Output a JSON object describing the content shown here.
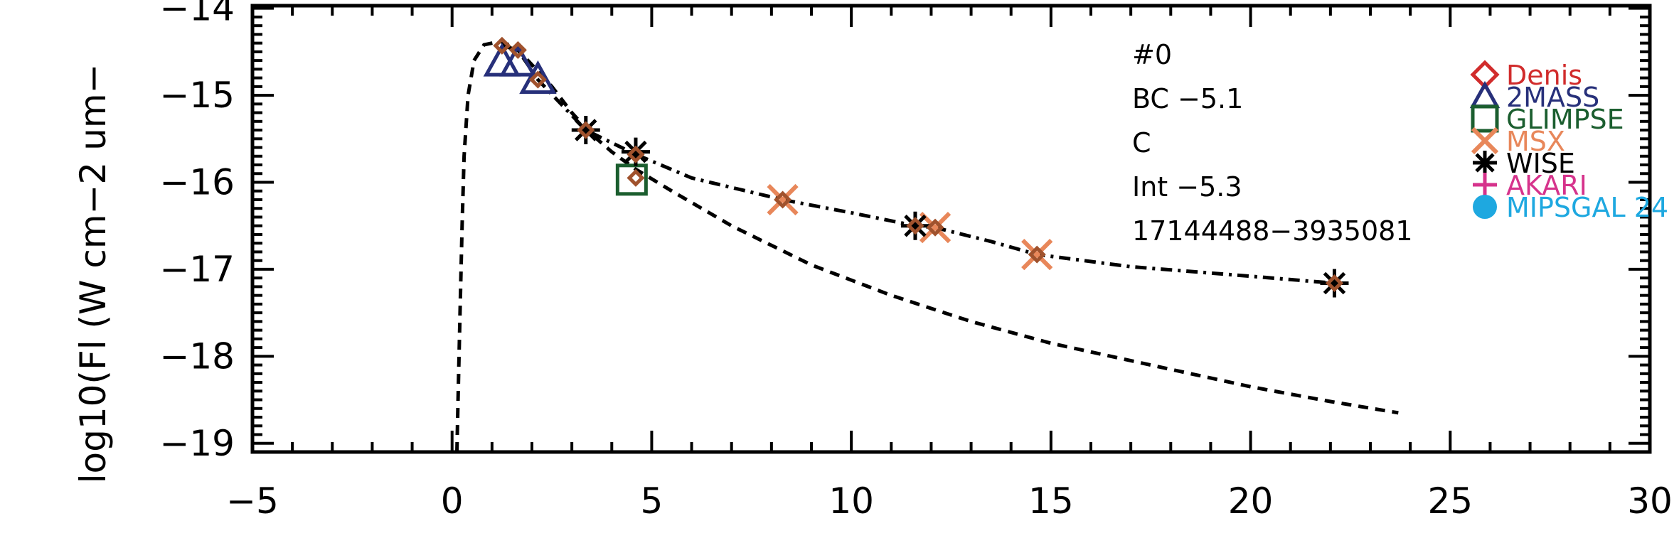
{
  "chart_data": {
    "type": "scatter",
    "xlim": [
      -5,
      30
    ],
    "ylim": [
      -19.1,
      -13.97
    ],
    "x_ticks": [
      -5,
      0,
      5,
      10,
      15,
      20,
      25,
      30
    ],
    "x_tick_labels": [
      "−5",
      "0",
      "5",
      "10",
      "15",
      "20",
      "25",
      "30"
    ],
    "y_ticks": [
      -19,
      -18,
      -17,
      -16,
      -15,
      -14
    ],
    "y_tick_labels": [
      "−19",
      "−18",
      "−17",
      "−16",
      "−15",
      "−14"
    ],
    "ylabel": "log10(Fl (W cm−2 um−",
    "xlabel": "",
    "grid": false,
    "annotations": [
      "#0",
      "BC −5.1",
      "C",
      "Int −5.3",
      "17144488−3935081"
    ],
    "legend_placement": "right",
    "legend": [
      {
        "name": "Denis",
        "marker": "diamond",
        "color": "#d12c2c"
      },
      {
        "name": "2MASS",
        "marker": "triangle",
        "color": "#27307a"
      },
      {
        "name": "GLIMPSE",
        "marker": "square",
        "color": "#1b5e2f"
      },
      {
        "name": "MSX",
        "marker": "x",
        "color": "#e8875a"
      },
      {
        "name": "WISE",
        "marker": "asterisk",
        "color": "#000000"
      },
      {
        "name": "AKARI",
        "marker": "plus",
        "color": "#d6338c"
      },
      {
        "name": "MIPSGAL 24",
        "marker": "circle",
        "color": "#1ea8e0"
      }
    ],
    "lines": [
      {
        "style": "dashed",
        "points": [
          [
            0.12,
            -19.1
          ],
          [
            0.15,
            -18.5
          ],
          [
            0.2,
            -17.5
          ],
          [
            0.25,
            -16.5
          ],
          [
            0.3,
            -15.7
          ],
          [
            0.4,
            -15.0
          ],
          [
            0.55,
            -14.6
          ],
          [
            0.8,
            -14.42
          ],
          [
            1.2,
            -14.38
          ],
          [
            1.6,
            -14.45
          ],
          [
            2.0,
            -14.65
          ],
          [
            2.5,
            -14.9
          ],
          [
            3.0,
            -15.2
          ],
          [
            3.5,
            -15.45
          ],
          [
            4.0,
            -15.65
          ],
          [
            4.6,
            -15.85
          ],
          [
            5.5,
            -16.1
          ],
          [
            7.0,
            -16.5
          ],
          [
            9.0,
            -16.95
          ],
          [
            11.0,
            -17.3
          ],
          [
            13.0,
            -17.6
          ],
          [
            15.0,
            -17.85
          ],
          [
            17.5,
            -18.1
          ],
          [
            20.0,
            -18.35
          ],
          [
            22.0,
            -18.52
          ],
          [
            23.7,
            -18.65
          ]
        ]
      },
      {
        "style": "dashdot",
        "points": [
          [
            1.25,
            -14.43
          ],
          [
            1.65,
            -14.48
          ],
          [
            2.15,
            -14.82
          ],
          [
            3.35,
            -15.4
          ],
          [
            4.6,
            -15.68
          ],
          [
            6.0,
            -15.95
          ],
          [
            8.28,
            -16.2
          ],
          [
            10.0,
            -16.35
          ],
          [
            11.6,
            -16.5
          ],
          [
            12.1,
            -16.52
          ],
          [
            13.5,
            -16.68
          ],
          [
            14.65,
            -16.83
          ],
          [
            17.0,
            -16.97
          ],
          [
            20.0,
            -17.08
          ],
          [
            22.1,
            -17.16
          ]
        ]
      }
    ],
    "series": [
      {
        "name": "Denis",
        "marker": "diamond",
        "x": [
          1.25,
          1.65,
          2.15,
          3.35,
          4.6,
          4.6,
          8.28,
          11.6,
          12.1,
          14.65,
          22.1
        ],
        "y": [
          -14.43,
          -14.48,
          -14.82,
          -15.4,
          -15.68,
          -15.95,
          -16.2,
          -16.5,
          -16.52,
          -16.83,
          -17.16
        ]
      },
      {
        "name": "2MASS",
        "marker": "triangle",
        "x": [
          1.25,
          1.65,
          2.15
        ],
        "y": [
          -14.62,
          -14.62,
          -14.82
        ]
      },
      {
        "name": "GLIMPSE",
        "marker": "square",
        "x": [
          4.5
        ],
        "y": [
          -15.97
        ]
      },
      {
        "name": "MSX",
        "marker": "x",
        "x": [
          8.28,
          12.1,
          14.65
        ],
        "y": [
          -16.2,
          -16.52,
          -16.83
        ]
      },
      {
        "name": "WISE",
        "marker": "asterisk",
        "x": [
          3.35,
          4.6,
          11.6,
          22.1
        ],
        "y": [
          -15.4,
          -15.65,
          -16.5,
          -17.16
        ]
      },
      {
        "name": "AKARI",
        "marker": "plus",
        "x": [],
        "y": []
      },
      {
        "name": "MIPSGAL 24",
        "marker": "circle",
        "x": [],
        "y": []
      }
    ]
  }
}
